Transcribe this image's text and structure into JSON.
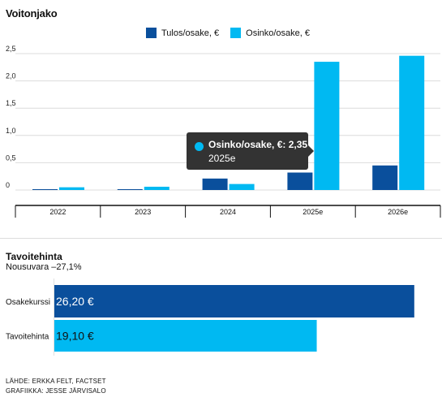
{
  "chart_data": [
    {
      "type": "bar",
      "title": "Voitonjako",
      "categories": [
        "2022",
        "2023",
        "2024",
        "2025e",
        "2026e"
      ],
      "series": [
        {
          "name": "Tulos/osake, €",
          "color": "#0a4f9c",
          "values": [
            0.01,
            0.01,
            0.21,
            0.32,
            0.45
          ]
        },
        {
          "name": "Osinko/osake, €",
          "color": "#00b9f2",
          "values": [
            0.05,
            0.06,
            0.11,
            2.35,
            2.46
          ]
        }
      ],
      "y_ticks": [
        "0",
        "0,5",
        "1,0",
        "1,5",
        "2,0",
        "2,5"
      ],
      "ylim": [
        0,
        2.5
      ],
      "grid": true,
      "legend": "top-center",
      "tooltip": {
        "label": "Osinko/osake, €: 2,35",
        "category": "2025e"
      }
    },
    {
      "type": "bar",
      "orientation": "horizontal",
      "title": "Tavoitehinta",
      "subtitle": "Nousuvara –27,1%",
      "categories": [
        "Osakekurssi",
        "Tavoitehinta"
      ],
      "values": [
        26.2,
        19.1
      ],
      "value_labels": [
        "26,20 €",
        "19,10 €"
      ],
      "colors": [
        "#0a4f9c",
        "#00b9f2"
      ],
      "xlim": [
        0,
        28.1
      ]
    }
  ],
  "footer": {
    "source": "LÄHDE: ERKKA FELT, FACTSET",
    "graphics": "GRAFIIKKA: JESSE JÄRVISALO"
  }
}
